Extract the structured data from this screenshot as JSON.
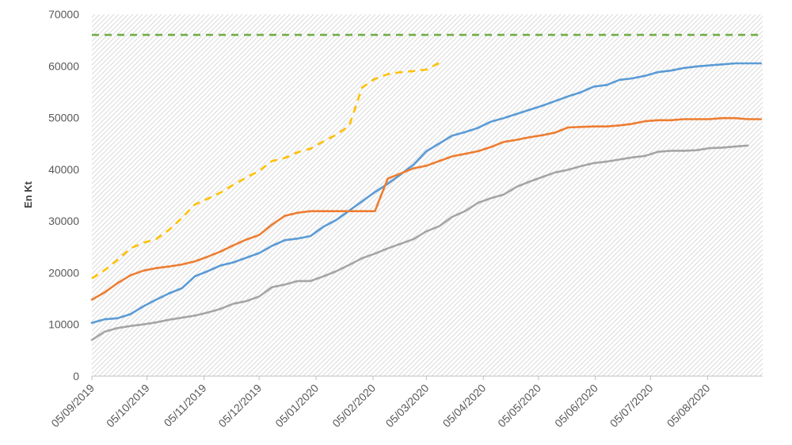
{
  "chart_data": {
    "type": "line",
    "title": "",
    "xlabel": "",
    "ylabel": "En Kt",
    "ylim": [
      0,
      70000
    ],
    "y_ticks": [
      0,
      10000,
      20000,
      30000,
      40000,
      50000,
      60000,
      70000
    ],
    "x_range": [
      "2019-09-05",
      "2020-09-04"
    ],
    "x_ticks": [
      "05/09/2019",
      "05/10/2019",
      "05/11/2019",
      "05/12/2019",
      "05/01/2020",
      "05/02/2020",
      "05/03/2020",
      "05/04/2020",
      "05/05/2020",
      "05/06/2020",
      "05/07/2020",
      "05/08/2020"
    ],
    "x_tick_dates": [
      "2019-09-05",
      "2019-10-05",
      "2019-11-05",
      "2019-12-05",
      "2020-01-05",
      "2020-02-05",
      "2020-03-05",
      "2020-04-05",
      "2020-05-05",
      "2020-06-05",
      "2020-07-05",
      "2020-08-05"
    ],
    "grid": false,
    "plot_background": "diagonal hatch",
    "series": [
      {
        "color": "#5B9BD5",
        "style": "solid",
        "points": [
          [
            "2019-09-05",
            10300
          ],
          [
            "2019-09-12",
            11000
          ],
          [
            "2019-09-19",
            11200
          ],
          [
            "2019-09-26",
            12000
          ],
          [
            "2019-10-03",
            13500
          ],
          [
            "2019-10-10",
            14800
          ],
          [
            "2019-10-17",
            16000
          ],
          [
            "2019-10-24",
            17000
          ],
          [
            "2019-10-31",
            19300
          ],
          [
            "2019-11-07",
            20300
          ],
          [
            "2019-11-14",
            21400
          ],
          [
            "2019-11-21",
            22000
          ],
          [
            "2019-11-28",
            22900
          ],
          [
            "2019-12-05",
            23800
          ],
          [
            "2019-12-12",
            25200
          ],
          [
            "2019-12-19",
            26300
          ],
          [
            "2019-12-26",
            26600
          ],
          [
            "2020-01-02",
            27100
          ],
          [
            "2020-01-09",
            28900
          ],
          [
            "2020-01-16",
            30200
          ],
          [
            "2020-01-23",
            32000
          ],
          [
            "2020-01-30",
            33800
          ],
          [
            "2020-02-06",
            35600
          ],
          [
            "2020-02-13",
            37200
          ],
          [
            "2020-02-20",
            39000
          ],
          [
            "2020-02-27",
            40900
          ],
          [
            "2020-03-05",
            43500
          ],
          [
            "2020-03-12",
            45000
          ],
          [
            "2020-03-19",
            46500
          ],
          [
            "2020-03-26",
            47200
          ],
          [
            "2020-04-02",
            48000
          ],
          [
            "2020-04-09",
            49200
          ],
          [
            "2020-04-16",
            49900
          ],
          [
            "2020-04-23",
            50700
          ],
          [
            "2020-04-30",
            51500
          ],
          [
            "2020-05-07",
            52300
          ],
          [
            "2020-05-14",
            53200
          ],
          [
            "2020-05-21",
            54100
          ],
          [
            "2020-05-28",
            54900
          ],
          [
            "2020-06-04",
            56000
          ],
          [
            "2020-06-11",
            56300
          ],
          [
            "2020-06-18",
            57300
          ],
          [
            "2020-06-25",
            57600
          ],
          [
            "2020-07-02",
            58100
          ],
          [
            "2020-07-09",
            58800
          ],
          [
            "2020-07-16",
            59100
          ],
          [
            "2020-07-23",
            59600
          ],
          [
            "2020-07-30",
            59900
          ],
          [
            "2020-08-06",
            60100
          ],
          [
            "2020-08-13",
            60300
          ],
          [
            "2020-08-20",
            60500
          ],
          [
            "2020-08-27",
            60500
          ],
          [
            "2020-09-03",
            60500
          ]
        ]
      },
      {
        "color": "#ED7D31",
        "style": "solid",
        "points": [
          [
            "2019-09-05",
            14800
          ],
          [
            "2019-09-12",
            16200
          ],
          [
            "2019-09-19",
            18000
          ],
          [
            "2019-09-26",
            19500
          ],
          [
            "2019-10-03",
            20400
          ],
          [
            "2019-10-10",
            20900
          ],
          [
            "2019-10-17",
            21200
          ],
          [
            "2019-10-24",
            21600
          ],
          [
            "2019-10-31",
            22200
          ],
          [
            "2019-11-07",
            23100
          ],
          [
            "2019-11-14",
            24100
          ],
          [
            "2019-11-21",
            25300
          ],
          [
            "2019-11-28",
            26400
          ],
          [
            "2019-12-05",
            27300
          ],
          [
            "2019-12-12",
            29300
          ],
          [
            "2019-12-19",
            31000
          ],
          [
            "2019-12-26",
            31600
          ],
          [
            "2020-01-02",
            31900
          ],
          [
            "2020-01-09",
            31900
          ],
          [
            "2020-01-16",
            31900
          ],
          [
            "2020-01-23",
            31900
          ],
          [
            "2020-01-30",
            31900
          ],
          [
            "2020-02-06",
            31900
          ],
          [
            "2020-02-13",
            38200
          ],
          [
            "2020-02-20",
            39200
          ],
          [
            "2020-02-27",
            40200
          ],
          [
            "2020-03-05",
            40700
          ],
          [
            "2020-03-12",
            41600
          ],
          [
            "2020-03-19",
            42500
          ],
          [
            "2020-03-26",
            43000
          ],
          [
            "2020-04-02",
            43500
          ],
          [
            "2020-04-09",
            44300
          ],
          [
            "2020-04-16",
            45300
          ],
          [
            "2020-04-23",
            45700
          ],
          [
            "2020-04-30",
            46200
          ],
          [
            "2020-05-07",
            46600
          ],
          [
            "2020-05-14",
            47100
          ],
          [
            "2020-05-21",
            48100
          ],
          [
            "2020-05-28",
            48200
          ],
          [
            "2020-06-04",
            48300
          ],
          [
            "2020-06-11",
            48300
          ],
          [
            "2020-06-18",
            48500
          ],
          [
            "2020-06-25",
            48800
          ],
          [
            "2020-07-02",
            49300
          ],
          [
            "2020-07-09",
            49500
          ],
          [
            "2020-07-16",
            49500
          ],
          [
            "2020-07-23",
            49700
          ],
          [
            "2020-07-30",
            49700
          ],
          [
            "2020-08-06",
            49700
          ],
          [
            "2020-08-13",
            49900
          ],
          [
            "2020-08-20",
            49900
          ],
          [
            "2020-08-27",
            49700
          ],
          [
            "2020-09-03",
            49700
          ]
        ]
      },
      {
        "color": "#A5A5A5",
        "style": "solid",
        "points": [
          [
            "2019-09-05",
            7000
          ],
          [
            "2019-09-12",
            8600
          ],
          [
            "2019-09-19",
            9300
          ],
          [
            "2019-09-26",
            9700
          ],
          [
            "2019-10-03",
            10000
          ],
          [
            "2019-10-10",
            10400
          ],
          [
            "2019-10-17",
            10900
          ],
          [
            "2019-10-24",
            11300
          ],
          [
            "2019-10-31",
            11700
          ],
          [
            "2019-11-07",
            12300
          ],
          [
            "2019-11-14",
            13000
          ],
          [
            "2019-11-21",
            14000
          ],
          [
            "2019-11-28",
            14500
          ],
          [
            "2019-12-05",
            15400
          ],
          [
            "2019-12-12",
            17200
          ],
          [
            "2019-12-19",
            17700
          ],
          [
            "2019-12-26",
            18400
          ],
          [
            "2020-01-02",
            18400
          ],
          [
            "2020-01-09",
            19300
          ],
          [
            "2020-01-16",
            20300
          ],
          [
            "2020-01-23",
            21500
          ],
          [
            "2020-01-30",
            22800
          ],
          [
            "2020-02-06",
            23700
          ],
          [
            "2020-02-13",
            24700
          ],
          [
            "2020-02-20",
            25600
          ],
          [
            "2020-02-27",
            26500
          ],
          [
            "2020-03-05",
            28000
          ],
          [
            "2020-03-12",
            29000
          ],
          [
            "2020-03-19",
            30800
          ],
          [
            "2020-03-26",
            31900
          ],
          [
            "2020-04-02",
            33500
          ],
          [
            "2020-04-09",
            34400
          ],
          [
            "2020-04-16",
            35100
          ],
          [
            "2020-04-23",
            36600
          ],
          [
            "2020-04-30",
            37600
          ],
          [
            "2020-05-07",
            38500
          ],
          [
            "2020-05-14",
            39400
          ],
          [
            "2020-05-21",
            39900
          ],
          [
            "2020-05-28",
            40600
          ],
          [
            "2020-06-04",
            41200
          ],
          [
            "2020-06-11",
            41500
          ],
          [
            "2020-06-18",
            41900
          ],
          [
            "2020-06-25",
            42300
          ],
          [
            "2020-07-02",
            42600
          ],
          [
            "2020-07-09",
            43400
          ],
          [
            "2020-07-16",
            43600
          ],
          [
            "2020-07-23",
            43600
          ],
          [
            "2020-07-30",
            43700
          ],
          [
            "2020-08-06",
            44100
          ],
          [
            "2020-08-13",
            44200
          ],
          [
            "2020-08-20",
            44400
          ],
          [
            "2020-08-27",
            44600
          ]
        ]
      },
      {
        "color": "#FFC000",
        "style": "dashed",
        "points": [
          [
            "2019-09-05",
            18900
          ],
          [
            "2019-09-12",
            20500
          ],
          [
            "2019-09-19",
            22500
          ],
          [
            "2019-09-26",
            24700
          ],
          [
            "2019-10-03",
            25800
          ],
          [
            "2019-10-10",
            26500
          ],
          [
            "2019-10-17",
            28300
          ],
          [
            "2019-10-24",
            30600
          ],
          [
            "2019-10-31",
            33200
          ],
          [
            "2019-11-07",
            34300
          ],
          [
            "2019-11-14",
            35500
          ],
          [
            "2019-11-21",
            37000
          ],
          [
            "2019-11-28",
            38400
          ],
          [
            "2019-12-05",
            39700
          ],
          [
            "2019-12-12",
            41600
          ],
          [
            "2019-12-19",
            42200
          ],
          [
            "2019-12-26",
            43300
          ],
          [
            "2020-01-02",
            44000
          ],
          [
            "2020-01-09",
            45400
          ],
          [
            "2020-01-16",
            46700
          ],
          [
            "2020-01-23",
            48400
          ],
          [
            "2020-01-30",
            55800
          ],
          [
            "2020-02-06",
            57500
          ],
          [
            "2020-02-13",
            58400
          ],
          [
            "2020-02-20",
            58800
          ],
          [
            "2020-02-27",
            59000
          ],
          [
            "2020-03-05",
            59300
          ],
          [
            "2020-03-12",
            60600
          ]
        ]
      },
      {
        "color": "#70AD47",
        "style": "dashed",
        "points": [
          [
            "2019-09-05",
            66000
          ],
          [
            "2020-09-04",
            66000
          ]
        ]
      }
    ]
  }
}
